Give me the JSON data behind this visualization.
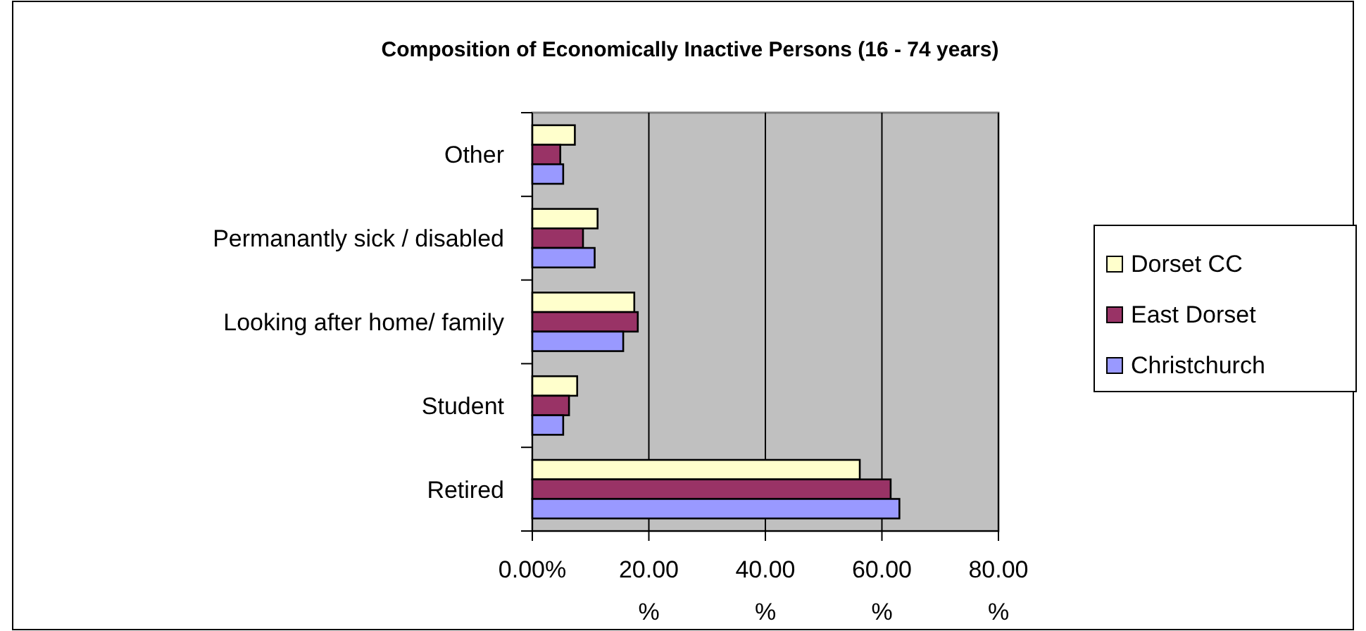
{
  "chart_data": {
    "type": "bar",
    "orientation": "horizontal",
    "title": "Composition of Economically Inactive Persons (16 - 74 years)",
    "categories": [
      "Other",
      "Permanantly sick / disabled",
      "Looking after home/ family",
      "Student",
      "Retired"
    ],
    "series": [
      {
        "name": "Dorset CC",
        "color": "#ffffcc",
        "values": [
          7.3,
          11.2,
          17.5,
          7.7,
          56.2
        ]
      },
      {
        "name": "East Dorset",
        "color": "#993366",
        "values": [
          4.8,
          8.7,
          18.1,
          6.3,
          61.5
        ]
      },
      {
        "name": "Christchurch",
        "color": "#9999ff",
        "values": [
          5.3,
          10.7,
          15.6,
          5.3,
          63.0
        ]
      }
    ],
    "xlim": [
      0,
      80
    ],
    "xticks": [
      {
        "value": 0,
        "label": "0.00%"
      },
      {
        "value": 20,
        "label": "20.00%"
      },
      {
        "value": 40,
        "label": "40.00%"
      },
      {
        "value": 60,
        "label": "60.00%"
      },
      {
        "value": 80,
        "label": "80.00%"
      }
    ],
    "grid": "x",
    "legend": "right"
  }
}
